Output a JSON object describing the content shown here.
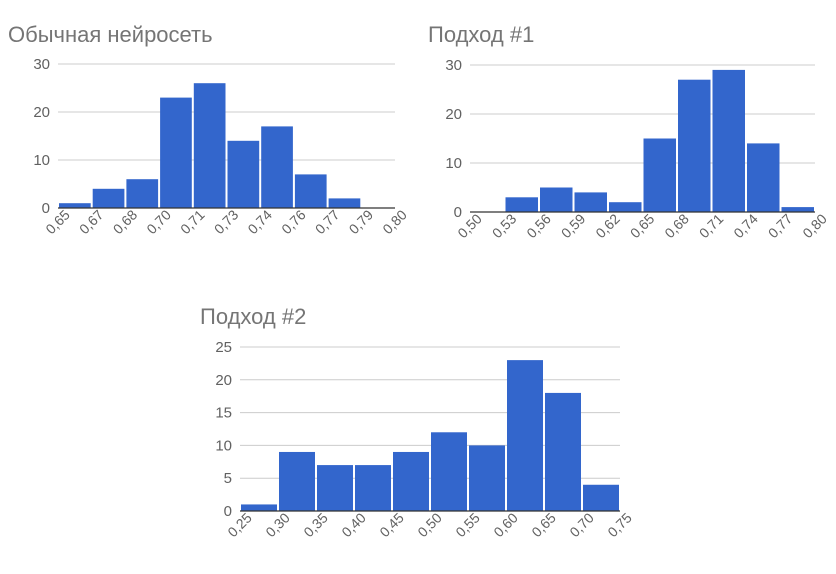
{
  "chart_data": [
    {
      "type": "bar",
      "title": "Обычная нейросеть",
      "bin_edges": [
        "0,65",
        "0,67",
        "0,68",
        "0,70",
        "0,71",
        "0,73",
        "0,74",
        "0,76",
        "0,77",
        "0,79",
        "0,80"
      ],
      "values": [
        1,
        4,
        6,
        23,
        26,
        14,
        17,
        7,
        2,
        0
      ],
      "yticks": [
        "0",
        "10",
        "20",
        "30"
      ],
      "ylim": [
        0,
        30
      ],
      "grid": true,
      "legend": "none",
      "color": "#3366cc"
    },
    {
      "type": "bar",
      "title": "Подход #1",
      "bin_edges": [
        "0,50",
        "0,53",
        "0,56",
        "0,59",
        "0,62",
        "0,65",
        "0,68",
        "0,71",
        "0,74",
        "0,77",
        "0,80"
      ],
      "values": [
        0,
        3,
        5,
        4,
        2,
        15,
        27,
        29,
        14,
        1
      ],
      "yticks": [
        "0",
        "10",
        "20",
        "30"
      ],
      "ylim": [
        0,
        30
      ],
      "grid": true,
      "legend": "none",
      "color": "#3366cc"
    },
    {
      "type": "bar",
      "title": "Подход #2",
      "bin_edges": [
        "0,25",
        "0,30",
        "0,35",
        "0,40",
        "0,45",
        "0,50",
        "0,55",
        "0,60",
        "0,65",
        "0,70",
        "0,75"
      ],
      "values": [
        1,
        9,
        7,
        7,
        9,
        12,
        10,
        23,
        18,
        4
      ],
      "yticks": [
        "0",
        "5",
        "10",
        "15",
        "20",
        "25"
      ],
      "ylim": [
        0,
        25
      ],
      "grid": true,
      "legend": "none",
      "color": "#3366cc"
    }
  ]
}
